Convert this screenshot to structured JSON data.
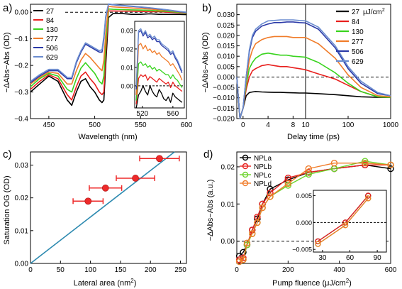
{
  "chart_data": [
    {
      "panel": "a)",
      "type": "line",
      "xlabel": "Wavelength (nm)",
      "ylabel": "−ΔAbs−Abs (OD)",
      "xlim": [
        430,
        600
      ],
      "ylim": [
        -0.4,
        0.03
      ],
      "xticks": [
        450,
        500,
        550,
        600
      ],
      "yticks": [
        0.0,
        -0.1,
        -0.2,
        -0.3,
        -0.4
      ],
      "zero_line": "dashed",
      "legend": "top-left",
      "x": [
        430,
        440,
        450,
        460,
        470,
        475,
        480,
        485,
        490,
        495,
        500,
        505,
        508,
        510,
        512,
        515,
        520,
        530,
        540,
        550,
        560,
        570,
        580,
        590,
        600
      ],
      "series": [
        {
          "name": "27",
          "color": "#000000",
          "values": [
            -0.3,
            -0.27,
            -0.24,
            -0.26,
            -0.33,
            -0.35,
            -0.3,
            -0.26,
            -0.25,
            -0.28,
            -0.3,
            -0.33,
            -0.34,
            -0.33,
            -0.2,
            -0.02,
            -0.005,
            -0.005,
            -0.008,
            -0.008,
            -0.006,
            -0.008,
            -0.008,
            -0.008,
            -0.009
          ]
        },
        {
          "name": "84",
          "color": "#e8201e",
          "values": [
            -0.29,
            -0.26,
            -0.235,
            -0.25,
            -0.31,
            -0.33,
            -0.28,
            -0.24,
            -0.225,
            -0.25,
            -0.27,
            -0.3,
            -0.31,
            -0.3,
            -0.16,
            0.005,
            0.005,
            0.004,
            0.004,
            0.003,
            0.002,
            0.002,
            0.0,
            -0.002,
            -0.004
          ]
        },
        {
          "name": "130",
          "color": "#39d31e",
          "values": [
            -0.28,
            -0.25,
            -0.23,
            -0.24,
            -0.29,
            -0.3,
            -0.25,
            -0.21,
            -0.19,
            -0.21,
            -0.23,
            -0.26,
            -0.27,
            -0.24,
            -0.12,
            0.012,
            0.011,
            0.01,
            0.009,
            0.008,
            0.007,
            0.005,
            0.003,
            0.0,
            -0.003
          ]
        },
        {
          "name": "277",
          "color": "#f07c2a",
          "values": [
            -0.27,
            -0.245,
            -0.225,
            -0.23,
            -0.27,
            -0.27,
            -0.22,
            -0.18,
            -0.155,
            -0.17,
            -0.19,
            -0.21,
            -0.22,
            -0.18,
            -0.08,
            0.022,
            0.02,
            0.018,
            0.016,
            0.014,
            0.012,
            0.009,
            0.006,
            0.002,
            -0.002
          ]
        },
        {
          "name": "506",
          "color": "#2b3aa8",
          "values": [
            -0.265,
            -0.24,
            -0.22,
            -0.22,
            -0.25,
            -0.25,
            -0.19,
            -0.15,
            -0.12,
            -0.13,
            -0.14,
            -0.15,
            -0.15,
            -0.1,
            -0.02,
            0.03,
            0.028,
            0.025,
            0.022,
            0.019,
            0.016,
            0.012,
            0.008,
            0.003,
            -0.001
          ]
        },
        {
          "name": "629",
          "color": "#6a8ccf",
          "values": [
            -0.26,
            -0.235,
            -0.215,
            -0.215,
            -0.245,
            -0.245,
            -0.185,
            -0.145,
            -0.115,
            -0.125,
            -0.135,
            -0.145,
            -0.14,
            -0.09,
            -0.015,
            0.031,
            0.029,
            0.026,
            0.023,
            0.02,
            0.017,
            0.013,
            0.009,
            0.004,
            0.0
          ]
        }
      ],
      "inset": {
        "xlim": [
          510,
          575
        ],
        "ylim": [
          -0.012,
          0.035
        ],
        "xticks": [
          520,
          560
        ],
        "yticks": [
          0.03,
          0.02,
          0.01,
          0.0
        ],
        "x": [
          512,
          515,
          518,
          521,
          524,
          527,
          530,
          533,
          536,
          539,
          542,
          545,
          548,
          551,
          554,
          557,
          560,
          563,
          566,
          569,
          572
        ],
        "series_values": [
          [
            -0.012,
            -0.005,
            -0.003,
            0.0,
            -0.003,
            -0.005,
            0.0,
            -0.003,
            -0.005,
            -0.006,
            -0.002,
            -0.004,
            -0.007,
            -0.008,
            -0.006,
            -0.009,
            -0.004,
            -0.006,
            -0.007,
            -0.008,
            -0.009
          ],
          [
            -0.01,
            0.004,
            0.006,
            0.005,
            0.006,
            0.003,
            0.005,
            0.004,
            0.003,
            0.002,
            0.004,
            0.003,
            0.002,
            0.001,
            0.002,
            -0.001,
            0.002,
            0.0,
            -0.001,
            -0.002,
            -0.003
          ],
          [
            -0.008,
            0.012,
            0.013,
            0.011,
            0.012,
            0.01,
            0.011,
            0.009,
            0.01,
            0.008,
            0.009,
            0.008,
            0.007,
            0.006,
            0.006,
            0.004,
            0.006,
            0.004,
            0.003,
            0.001,
            -0.001
          ],
          [
            -0.005,
            0.022,
            0.023,
            0.02,
            0.022,
            0.019,
            0.02,
            0.018,
            0.019,
            0.017,
            0.018,
            0.016,
            0.015,
            0.014,
            0.013,
            0.011,
            0.012,
            0.01,
            0.008,
            0.006,
            0.003
          ],
          [
            -0.002,
            0.029,
            0.03,
            0.027,
            0.029,
            0.026,
            0.027,
            0.025,
            0.026,
            0.024,
            0.024,
            0.022,
            0.021,
            0.02,
            0.019,
            0.017,
            0.018,
            0.015,
            0.013,
            0.01,
            0.007
          ],
          [
            0.0,
            0.03,
            0.031,
            0.028,
            0.03,
            0.027,
            0.028,
            0.026,
            0.027,
            0.025,
            0.025,
            0.023,
            0.022,
            0.021,
            0.02,
            0.018,
            0.019,
            0.016,
            0.014,
            0.011,
            0.008
          ]
        ]
      }
    },
    {
      "panel": "b)",
      "type": "line",
      "xlabel": "Delay time (ps)",
      "ylabel": "−ΔAbs−Abs (OD)",
      "x_scale": "linear below 10 ps, log above 10 ps",
      "xlim": [
        -1,
        1000
      ],
      "ylim": [
        -0.02,
        0.035
      ],
      "xtick_labels": [
        "0",
        "4",
        "8",
        "10",
        "100",
        "1000"
      ],
      "yticks": [
        0.03,
        0.025,
        0.02,
        0.015,
        0.01,
        0.005,
        0.0,
        -0.005,
        -0.01,
        -0.015,
        -0.02
      ],
      "zero_line": "dashed",
      "legend": "top-right",
      "legend_unit": "μJ/cm",
      "x": [
        -1,
        -0.5,
        0,
        0.5,
        1,
        1.5,
        2,
        3,
        4,
        5,
        6,
        7,
        8,
        9,
        10,
        20,
        50,
        100,
        200,
        500,
        1000
      ],
      "series": [
        {
          "name": "27",
          "color": "#000000",
          "values": [
            0,
            -0.02,
            -0.015,
            -0.009,
            -0.0075,
            -0.0072,
            -0.007,
            -0.0072,
            -0.0073,
            -0.0074,
            -0.0074,
            -0.0075,
            -0.0076,
            -0.0077,
            -0.0077,
            -0.008,
            -0.0085,
            -0.009,
            -0.0095,
            -0.0098,
            -0.0098
          ]
        },
        {
          "name": "84",
          "color": "#e8201e",
          "values": [
            0,
            -0.02,
            -0.015,
            -0.006,
            0.0,
            0.003,
            0.004,
            0.0055,
            0.006,
            0.0055,
            0.005,
            0.005,
            0.0045,
            0.004,
            0.0035,
            0.0015,
            -0.001,
            -0.004,
            -0.007,
            -0.0095,
            -0.0098
          ]
        },
        {
          "name": "130",
          "color": "#39d31e",
          "values": [
            0,
            -0.02,
            -0.015,
            -0.004,
            0.004,
            0.007,
            0.009,
            0.011,
            0.0115,
            0.011,
            0.0105,
            0.0105,
            0.01,
            0.0098,
            0.0095,
            0.007,
            0.002,
            -0.003,
            -0.007,
            -0.0095,
            -0.0098
          ]
        },
        {
          "name": "277",
          "color": "#f07c2a",
          "values": [
            0,
            -0.02,
            -0.015,
            -0.002,
            0.008,
            0.013,
            0.016,
            0.018,
            0.019,
            0.0195,
            0.0195,
            0.0195,
            0.019,
            0.019,
            0.019,
            0.016,
            0.009,
            0.001,
            -0.005,
            -0.009,
            -0.0095
          ]
        },
        {
          "name": "506",
          "color": "#2b3aa8",
          "values": [
            0,
            -0.02,
            -0.015,
            0.0,
            0.012,
            0.019,
            0.022,
            0.0245,
            0.0255,
            0.0262,
            0.0262,
            0.0265,
            0.0265,
            0.0262,
            0.026,
            0.023,
            0.014,
            0.004,
            -0.003,
            -0.008,
            -0.009
          ]
        },
        {
          "name": "629",
          "color": "#6a8ccf",
          "values": [
            0,
            -0.02,
            -0.015,
            0.0,
            0.013,
            0.02,
            0.023,
            0.0255,
            0.027,
            0.0272,
            0.0275,
            0.0275,
            0.0275,
            0.0272,
            0.027,
            0.024,
            0.015,
            0.005,
            -0.002,
            -0.0075,
            -0.009
          ]
        }
      ]
    },
    {
      "panel": "c)",
      "type": "scatter",
      "xlabel": "Lateral area (nm",
      "xlabel_sup": "2",
      "xlabel_end": ")",
      "ylabel": "Saturation OG (OD)",
      "xlim": [
        0,
        260
      ],
      "ylim": [
        0.0,
        0.034
      ],
      "xticks": [
        0,
        50,
        100,
        150,
        200,
        250
      ],
      "yticks": [
        0.0,
        0.01,
        0.02,
        0.03
      ],
      "points": [
        {
          "x": 96,
          "y": 0.019,
          "xerr": 25
        },
        {
          "x": 125,
          "y": 0.023,
          "xerr": 27
        },
        {
          "x": 175,
          "y": 0.026,
          "xerr": 32
        },
        {
          "x": 215,
          "y": 0.032,
          "xerr": 33
        }
      ],
      "fit_line": {
        "x": [
          0,
          240
        ],
        "y": [
          0.0,
          0.034
        ]
      },
      "marker_color": "#ee2a2a",
      "fit_color": "#2d8ab0"
    },
    {
      "panel": "d)",
      "type": "line",
      "xlabel": "Pump fluence (μJ/cm",
      "xlabel_sup": "2",
      "xlabel_end": ")",
      "ylabel": "−ΔAbs−Abs (a.u.)",
      "xlim": [
        0,
        600
      ],
      "ylim": [
        -0.006,
        0.024
      ],
      "xticks": [
        0,
        200,
        400,
        600
      ],
      "yticks": [
        0.02,
        0.01,
        0.0
      ],
      "zero_line": "dashed",
      "legend": "top-left",
      "series": [
        {
          "name": "NPLa",
          "color": "#000000",
          "x": [
            10,
            25,
            40,
            60,
            80,
            100,
            130,
            200,
            280,
            380,
            500,
            600
          ],
          "values": [
            -0.004,
            -0.003,
            -0.001,
            0.003,
            0.006,
            0.01,
            0.014,
            0.0165,
            0.0185,
            0.0195,
            0.0205,
            0.0195
          ]
        },
        {
          "name": "NPLb",
          "color": "#e8201e",
          "x": [
            10,
            25,
            40,
            60,
            80,
            100,
            130,
            200,
            280,
            380,
            500,
            600
          ],
          "values": [
            -0.005,
            -0.0045,
            -0.001,
            0.003,
            0.0065,
            0.01,
            0.013,
            0.017,
            0.0185,
            0.0195,
            0.0205,
            0.0205
          ]
        },
        {
          "name": "NPLc",
          "color": "#6cd42c",
          "x": [
            10,
            25,
            40,
            60,
            80,
            100,
            130,
            200,
            280,
            380,
            500,
            600
          ],
          "values": [
            -0.0055,
            -0.005,
            -0.001,
            0.002,
            0.005,
            0.009,
            0.012,
            0.015,
            0.018,
            0.0195,
            0.0215,
            0.0205
          ]
        },
        {
          "name": "NPLd",
          "color": "#f07c2a",
          "x": [
            10,
            25,
            40,
            60,
            80,
            100,
            130,
            200,
            280,
            380,
            500,
            600
          ],
          "values": [
            -0.0055,
            -0.005,
            -0.0005,
            0.002,
            0.005,
            0.009,
            0.012,
            0.0155,
            0.0195,
            0.021,
            0.021,
            0.0205
          ]
        }
      ],
      "inset": {
        "xlim": [
          20,
          100
        ],
        "ylim": [
          -0.0055,
          0.006
        ],
        "xticks": [
          30,
          60,
          90
        ],
        "yticks": [
          0.005,
          0.0,
          -0.005
        ],
        "series_points": [
          [
            [
              25,
              -0.0035
            ],
            [
              55,
              0.0
            ],
            [
              80,
              0.005
            ]
          ],
          [
            [
              25,
              -0.0035
            ],
            [
              55,
              0.0
            ],
            [
              80,
              0.005
            ]
          ],
          [
            [
              25,
              -0.004
            ],
            [
              55,
              -0.0005
            ],
            [
              80,
              0.0045
            ]
          ],
          [
            [
              25,
              -0.004
            ],
            [
              55,
              -0.0005
            ],
            [
              80,
              0.0045
            ]
          ]
        ]
      }
    }
  ]
}
